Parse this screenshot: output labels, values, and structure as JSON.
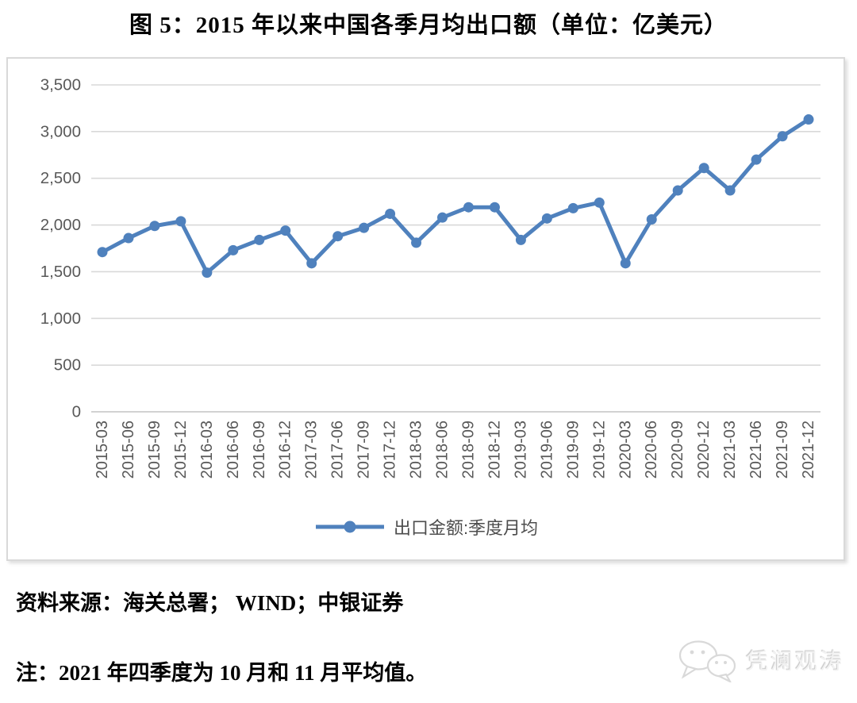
{
  "title": "图 5：2015 年以来中国各季月均出口额（单位：亿美元）",
  "chart_data": {
    "type": "line",
    "title": "图 5：2015 年以来中国各季月均出口额（单位：亿美元）",
    "categories": [
      "2015-03",
      "2015-06",
      "2015-09",
      "2015-12",
      "2016-03",
      "2016-06",
      "2016-09",
      "2016-12",
      "2017-03",
      "2017-06",
      "2017-09",
      "2017-12",
      "2018-03",
      "2018-06",
      "2018-09",
      "2018-12",
      "2019-03",
      "2019-06",
      "2019-09",
      "2019-12",
      "2020-03",
      "2020-06",
      "2020-09",
      "2020-12",
      "2021-03",
      "2021-06",
      "2021-09",
      "2021-12"
    ],
    "series": [
      {
        "name": "出口金额:季度月均",
        "values": [
          1710,
          1860,
          1990,
          2040,
          1490,
          1730,
          1840,
          1940,
          1590,
          1880,
          1970,
          2120,
          1810,
          2080,
          2190,
          2190,
          1840,
          2070,
          2180,
          2240,
          1590,
          2060,
          2370,
          2610,
          2370,
          2700,
          2950,
          3130
        ]
      }
    ],
    "xlabel": "",
    "ylabel": "",
    "ylim": [
      0,
      3500
    ],
    "ytick_interval": 500,
    "ytick_labels": [
      "0",
      "500",
      "1,000",
      "1,500",
      "2,000",
      "2,500",
      "3,000",
      "3,500"
    ],
    "grid": true,
    "legend_position": "bottom",
    "line_color": "#4F81BD",
    "grid_color": "#D9D9D9",
    "baseline_color": "#C3C3C3",
    "axis_label_color": "#595959"
  },
  "source_line": "资料来源：海关总署； WIND；中银证券",
  "note_line": "注：2021 年四季度为 10 月和 11 月平均值。",
  "watermark": {
    "text": "凭澜观涛",
    "icon": "wechat-icon"
  }
}
